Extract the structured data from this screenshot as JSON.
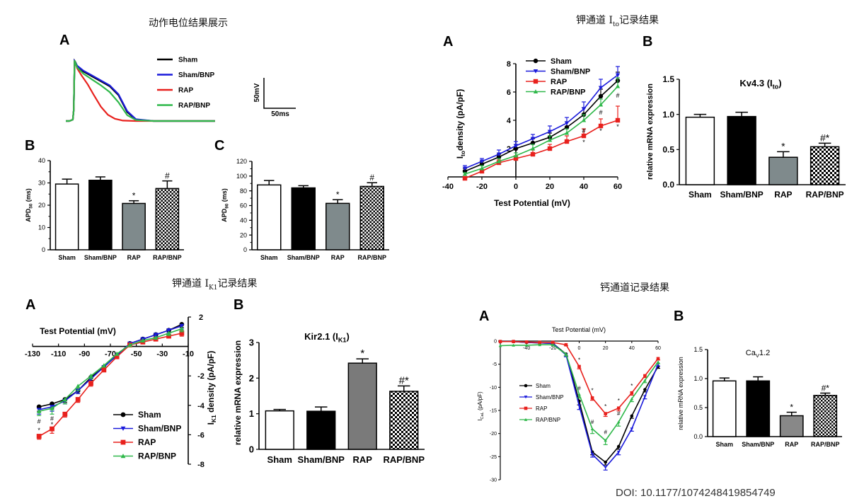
{
  "sections": {
    "ap_title": "动作电位结果展示",
    "ito_title_pre": "钾通道 I",
    "ito_title_sub": "to",
    "ito_title_post": "记录结果",
    "ik1_title_pre": "钾通道 I",
    "ik1_title_sub": "K1",
    "ik1_title_post": "记录结果",
    "ca_title": "钙通道记录结果"
  },
  "panel_letters": {
    "ap_a": "A",
    "ap_b": "B",
    "ap_c": "C",
    "ito_a": "A",
    "ito_b": "B",
    "ik1_a": "A",
    "ik1_b": "B",
    "ca_a": "A",
    "ca_b": "B"
  },
  "doi": "DOI: 10.1177/1074248419854749",
  "colors": {
    "sham": "#000000",
    "sham_bnp": "#1a1adb",
    "rap": "#e8211d",
    "rap_bnp": "#2fb84a",
    "rap_bar": "#7f8a8c",
    "ik1_rap_bar": "#7a7a7a",
    "ca_rap_bar": "#888888"
  },
  "chart_data": [
    {
      "id": "ap_traces",
      "type": "line",
      "legend": [
        "Sham",
        "Sham/BNP",
        "RAP",
        "RAP/BNP"
      ],
      "scale_bar": {
        "voltage": "50mV",
        "time": "50ms"
      },
      "series": [
        {
          "name": "Sham",
          "x": [
            0,
            4,
            8,
            9,
            10,
            11,
            13,
            20,
            30,
            40,
            50,
            60,
            70,
            80,
            100,
            140,
            170
          ],
          "values": [
            -80,
            -80,
            -77,
            -55,
            55,
            52,
            43,
            31,
            20,
            9,
            -2,
            -22,
            -60,
            -77,
            -80,
            -80,
            -80
          ]
        },
        {
          "name": "Sham/BNP",
          "x": [
            0,
            4,
            8,
            9,
            10,
            11,
            13,
            20,
            30,
            40,
            50,
            60,
            70,
            80,
            100,
            140,
            170
          ],
          "values": [
            -80,
            -80,
            -77,
            -55,
            54,
            51,
            44,
            33,
            22,
            11,
            0,
            -20,
            -58,
            -76,
            -80,
            -80,
            -80
          ]
        },
        {
          "name": "RAP",
          "x": [
            0,
            4,
            8,
            9,
            10,
            11,
            13,
            18,
            25,
            32,
            40,
            48,
            56,
            65,
            80,
            140,
            170
          ],
          "values": [
            -80,
            -80,
            -77,
            -55,
            55,
            50,
            38,
            22,
            2,
            -22,
            -48,
            -66,
            -75,
            -79,
            -80,
            -80,
            -80
          ]
        },
        {
          "name": "RAP/BNP",
          "x": [
            0,
            4,
            8,
            9,
            10,
            11,
            13,
            20,
            30,
            40,
            50,
            60,
            70,
            80,
            100,
            140,
            170
          ],
          "values": [
            -80,
            -80,
            -77,
            -55,
            56,
            50,
            40,
            26,
            13,
            0,
            -15,
            -38,
            -67,
            -78,
            -80,
            -80,
            -80
          ]
        }
      ]
    },
    {
      "id": "apd50",
      "type": "bar",
      "categories": [
        "Sham",
        "Sham/BNP",
        "RAP",
        "RAP/BNP"
      ],
      "values": [
        29.5,
        31.2,
        20.8,
        27.5
      ],
      "errors": [
        2.2,
        1.5,
        1.2,
        3.4
      ],
      "annotations": [
        "",
        "",
        "*",
        "#"
      ],
      "ylabel_main": "APD",
      "ylabel_sub": "50",
      "ylabel_unit": " (ms)",
      "ylim": [
        0,
        40
      ],
      "yticks": [
        0,
        10,
        20,
        30,
        40
      ]
    },
    {
      "id": "apd90",
      "type": "bar",
      "categories": [
        "Sham",
        "Sham/BNP",
        "RAP",
        "RAP/BNP"
      ],
      "values": [
        88,
        84,
        63,
        86
      ],
      "errors": [
        6,
        3,
        5,
        5
      ],
      "annotations": [
        "",
        "",
        "*",
        "#"
      ],
      "ylabel_main": "APD",
      "ylabel_sub": "90",
      "ylabel_unit": " (ms)",
      "ylim": [
        0,
        120
      ],
      "yticks": [
        0,
        20,
        40,
        60,
        80,
        100,
        120
      ]
    },
    {
      "id": "ito_iv",
      "type": "line",
      "xlabel": "Test Potential (mV)",
      "ylabel_pre": "I",
      "ylabel_sub": "to",
      "ylabel_post": "density (pA/pF)",
      "xlim": [
        -40,
        60
      ],
      "ylim": [
        0,
        8
      ],
      "xticks": [
        -40,
        -20,
        0,
        20,
        40,
        60
      ],
      "yticks": [
        2,
        4,
        6,
        8
      ],
      "x": [
        -30,
        -20,
        -10,
        0,
        10,
        20,
        30,
        40,
        50,
        60
      ],
      "legend": [
        "Sham",
        "Sham/BNP",
        "RAP",
        "RAP/BNP"
      ],
      "series": [
        {
          "name": "Sham",
          "values": [
            0.4,
            0.9,
            1.4,
            2.0,
            2.4,
            2.8,
            3.5,
            4.4,
            5.7,
            6.8
          ],
          "errors": [
            0.2,
            0.2,
            0.2,
            0.3,
            0.3,
            0.3,
            0.4,
            0.5,
            0.5,
            0.6
          ]
        },
        {
          "name": "Sham/BNP",
          "values": [
            0.6,
            1.1,
            1.6,
            2.2,
            2.7,
            3.2,
            3.8,
            4.8,
            6.3,
            7.2
          ],
          "errors": [
            0.2,
            0.2,
            0.3,
            0.3,
            0.3,
            0.4,
            0.4,
            0.5,
            0.6,
            0.6
          ]
        },
        {
          "name": "RAP",
          "values": [
            -0.1,
            0.4,
            1.0,
            1.3,
            1.6,
            2.0,
            2.5,
            2.9,
            3.6,
            4.0
          ],
          "errors": [
            0.1,
            0.1,
            0.2,
            0.2,
            0.3,
            0.3,
            0.4,
            0.5,
            0.5,
            1.0
          ]
        },
        {
          "name": "RAP/BNP",
          "values": [
            0.2,
            0.6,
            1.1,
            1.5,
            2.0,
            2.6,
            3.1,
            4.0,
            5.1,
            6.4
          ],
          "errors": [
            0.1,
            0.2,
            0.2,
            0.2,
            0.3,
            0.3,
            0.3,
            0.4,
            0.4,
            0.6
          ]
        }
      ],
      "annotations": [
        {
          "x": 40,
          "y": 3.3,
          "text": "#"
        },
        {
          "x": 40,
          "y": 2.5,
          "text": "*"
        },
        {
          "x": 50,
          "y": 4.6,
          "text": "#"
        },
        {
          "x": 50,
          "y": 3.3,
          "text": "*"
        },
        {
          "x": 60,
          "y": 5.8,
          "text": "#"
        },
        {
          "x": 60,
          "y": 3.6,
          "text": "*"
        }
      ]
    },
    {
      "id": "kv43",
      "type": "bar",
      "title_main": "Kv4.3 (I",
      "title_sub": "to",
      "title_post": ")",
      "ylabel": "relative mRNA expression",
      "categories": [
        "Sham",
        "Sham/BNP",
        "RAP",
        "RAP/BNP"
      ],
      "values": [
        0.96,
        0.97,
        0.39,
        0.54
      ],
      "errors": [
        0.04,
        0.06,
        0.08,
        0.05
      ],
      "annotations": [
        "",
        "",
        "*",
        "#*"
      ],
      "ylim": [
        0,
        1.5
      ],
      "yticks": [
        0.0,
        0.5,
        1.0,
        1.5
      ],
      "tick_labels": [
        "0.0",
        "0.5",
        "1.0",
        "1.5"
      ]
    },
    {
      "id": "ik1_iv",
      "type": "line",
      "xlabel": "Test Potential (mV)",
      "ylabel_pre": "I",
      "ylabel_sub": "K1",
      "ylabel_post": " density (pA/pF)",
      "xlim": [
        -130,
        -10
      ],
      "ylim": [
        -8,
        2
      ],
      "xticks": [
        -130,
        -110,
        -90,
        -70,
        -50,
        -30,
        -10
      ],
      "yticks": [
        -8,
        -6,
        -4,
        -2,
        2
      ],
      "x": [
        -125,
        -115,
        -105,
        -95,
        -85,
        -75,
        -65,
        -55,
        -45,
        -35,
        -25,
        -15
      ],
      "legend": [
        "Sham",
        "Sham/BNP",
        "RAP",
        "RAP/BNP"
      ],
      "series": [
        {
          "name": "Sham",
          "values": [
            -4.1,
            -3.9,
            -3.6,
            -3.0,
            -2.1,
            -1.4,
            -0.6,
            0.2,
            0.5,
            0.8,
            1.1,
            1.5
          ],
          "errors": [
            0.3,
            0.3,
            0.2,
            0.2,
            0.2,
            0.1,
            0.1,
            0.1,
            0.1,
            0.1,
            0.15,
            0.2
          ]
        },
        {
          "name": "Sham/BNP",
          "values": [
            -4.3,
            -4.1,
            -3.7,
            -3.0,
            -2.2,
            -1.4,
            -0.6,
            0.2,
            0.5,
            0.8,
            1.1,
            1.4
          ],
          "errors": [
            0.3,
            0.3,
            0.2,
            0.2,
            0.2,
            0.1,
            0.1,
            0.1,
            0.1,
            0.1,
            0.15,
            0.2
          ]
        },
        {
          "name": "RAP",
          "values": [
            -6.1,
            -5.6,
            -4.6,
            -3.6,
            -2.5,
            -1.6,
            -0.7,
            0.1,
            0.3,
            0.5,
            0.7,
            0.9
          ],
          "errors": [
            0.2,
            0.3,
            0.2,
            0.2,
            0.2,
            0.1,
            0.1,
            0.1,
            0.1,
            0.1,
            0.1,
            0.2
          ]
        },
        {
          "name": "RAP/BNP",
          "values": [
            -4.4,
            -4.2,
            -3.6,
            -2.7,
            -2.0,
            -1.3,
            -0.5,
            0.1,
            0.4,
            0.6,
            0.9,
            1.2
          ],
          "errors": [
            0.3,
            0.4,
            0.3,
            0.3,
            0.2,
            0.1,
            0.1,
            0.1,
            0.1,
            0.1,
            0.15,
            0.2
          ]
        }
      ],
      "annotations": [
        {
          "x": -125,
          "y": -5.1,
          "text": "#"
        },
        {
          "x": -125,
          "y": -5.7,
          "text": "*"
        },
        {
          "x": -115,
          "y": -4.9,
          "text": "#"
        },
        {
          "x": -115,
          "y": -5.3,
          "text": "*"
        }
      ]
    },
    {
      "id": "kir21",
      "type": "bar",
      "title_main": "Kir2.1 (I",
      "title_sub": "K1",
      "title_post": ")",
      "ylabel": "relative mRNA expression",
      "categories": [
        "Sham",
        "Sham/BNP",
        "RAP",
        "RAP/BNP"
      ],
      "values": [
        1.08,
        1.07,
        2.42,
        1.63
      ],
      "errors": [
        0.04,
        0.12,
        0.12,
        0.15
      ],
      "annotations": [
        "",
        "",
        "*",
        "#*"
      ],
      "ylim": [
        0,
        3
      ],
      "yticks": [
        0,
        1,
        2,
        3
      ],
      "tick_labels": [
        "0",
        "1",
        "2",
        "3"
      ]
    },
    {
      "id": "ica_iv",
      "type": "line",
      "xlabel": "Test Potential (mV)",
      "ylabel_pre": "I",
      "ylabel_sub": "CaL",
      "ylabel_post": " (pA/pF)",
      "xlim": [
        -60,
        60
      ],
      "ylim": [
        -30,
        0
      ],
      "xticks": [
        -40,
        -20,
        0,
        20,
        40,
        60
      ],
      "yticks": [
        0,
        -5,
        -10,
        -15,
        -20,
        -25,
        -30
      ],
      "x": [
        -60,
        -50,
        -40,
        -30,
        -20,
        -10,
        0,
        10,
        20,
        30,
        40,
        50,
        60
      ],
      "legend": [
        "Sham",
        "Sham/BNP",
        "RAP",
        "RAP/BNP"
      ],
      "series": [
        {
          "name": "Sham",
          "values": [
            -0.1,
            -0.1,
            -0.3,
            -0.4,
            -0.5,
            -2.8,
            -13.0,
            -24.0,
            -26.2,
            -22.8,
            -16.2,
            -10.5,
            -5.5
          ],
          "errors": [
            0,
            0,
            0,
            0,
            0.1,
            0.4,
            0.8,
            0.6,
            0.6,
            0.6,
            0.5,
            0.5,
            0.4
          ]
        },
        {
          "name": "Sham/BNP",
          "values": [
            -0.1,
            -0.1,
            -0.3,
            -0.4,
            -0.5,
            -3.0,
            -14.0,
            -24.5,
            -27.3,
            -24.0,
            -19.0,
            -12.0,
            -5.0
          ],
          "errors": [
            0,
            0,
            0,
            0,
            0.1,
            0.4,
            0.8,
            0.6,
            0.6,
            0.6,
            0.5,
            0.5,
            0.4
          ]
        },
        {
          "name": "RAP",
          "values": [
            -0.1,
            -0.1,
            -0.2,
            -0.3,
            -0.3,
            -0.8,
            -5.5,
            -12.3,
            -15.7,
            -14.5,
            -11.2,
            -7.5,
            -3.8
          ],
          "errors": [
            0,
            0,
            0,
            0,
            0.1,
            0.2,
            0.5,
            0.5,
            0.6,
            0.6,
            0.5,
            0.4,
            0.3
          ]
        },
        {
          "name": "RAP/BNP",
          "values": [
            -1.0,
            -0.9,
            -0.9,
            -0.8,
            -0.8,
            -2.8,
            -11.5,
            -19.0,
            -21.5,
            -17.5,
            -12.5,
            -8.5,
            -4.5
          ],
          "errors": [
            0,
            0,
            0,
            0,
            0.1,
            0.4,
            0.8,
            1.0,
            0.9,
            0.9,
            0.6,
            0.5,
            0.4
          ]
        }
      ],
      "annotations": [
        {
          "x": 0,
          "y": -4.2,
          "text": "*"
        },
        {
          "x": 0,
          "y": -10.3,
          "text": "#"
        },
        {
          "x": 10,
          "y": -10.8,
          "text": "*"
        },
        {
          "x": 10,
          "y": -17.6,
          "text": "#"
        },
        {
          "x": 20,
          "y": -14.2,
          "text": "*"
        },
        {
          "x": 20,
          "y": -19.8,
          "text": "#"
        },
        {
          "x": 30,
          "y": -13.0,
          "text": "*"
        },
        {
          "x": 30,
          "y": -15.8,
          "text": "#"
        },
        {
          "x": 40,
          "y": -9.8,
          "text": "*"
        }
      ]
    },
    {
      "id": "cav12",
      "type": "bar",
      "title_main": "Ca",
      "title_sub": "V",
      "title_post": "1.2",
      "ylabel": "relative mRNA expression",
      "categories": [
        "Sham",
        "Sham/BNP",
        "RAP",
        "RAP/BNP"
      ],
      "values": [
        0.96,
        0.96,
        0.36,
        0.71
      ],
      "errors": [
        0.05,
        0.07,
        0.06,
        0.04
      ],
      "annotations": [
        "",
        "",
        "*",
        "#*"
      ],
      "ylim": [
        0,
        1.5
      ],
      "yticks": [
        0.0,
        0.5,
        1.0,
        1.5
      ],
      "tick_labels": [
        "0.0",
        "0.5",
        "1.0",
        "1.5"
      ]
    }
  ]
}
